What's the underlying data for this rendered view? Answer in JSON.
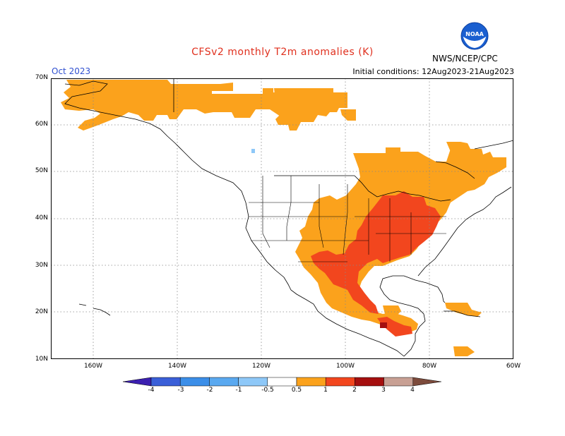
{
  "header": {
    "title": "CFSv2 monthly T2m anomalies (K)",
    "month": "Oct 2023",
    "initial_conditions": "Initial conditions: 12Aug2023-21Aug2023",
    "agency": "NWS/NCEP/CPC",
    "logo_text": "NOAA"
  },
  "axes": {
    "lat_labels": [
      "70N",
      "60N",
      "50N",
      "40N",
      "30N",
      "20N",
      "10N"
    ],
    "lon_labels": [
      "160W",
      "140W",
      "120W",
      "100W",
      "80W",
      "60W"
    ]
  },
  "colorbar": {
    "labels": [
      "-4",
      "-3",
      "-2",
      "-1",
      "-0.5",
      "0.5",
      "1",
      "2",
      "3",
      "4"
    ],
    "colors": [
      "#3b1fb0",
      "#3a5fd8",
      "#3b8ee8",
      "#5aa9f0",
      "#8ec8f8",
      "#ffffff",
      "#fba21c",
      "#f2461e",
      "#a50f0f",
      "#c8a094",
      "#7d4b3c"
    ]
  },
  "colors": {
    "anomaly_0_5_1": "#fba21c",
    "anomaly_1_2": "#f2461e",
    "anomaly_2_3": "#a50f0f",
    "anomaly_neg_0_5_1": "#8ec8f8"
  }
}
